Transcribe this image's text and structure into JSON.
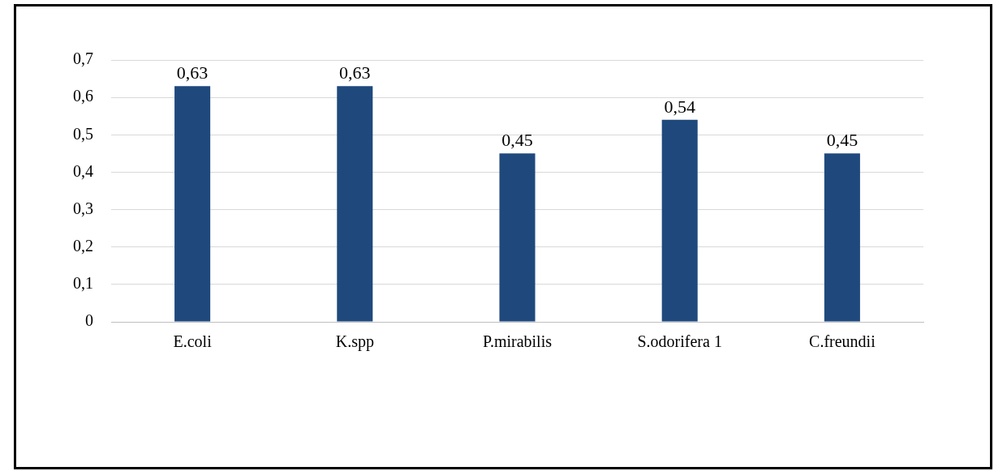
{
  "chart_data": {
    "type": "bar",
    "categories": [
      "E.coli",
      "K.spp",
      "P.mirabilis",
      "S.odorifera 1",
      "C.freundii"
    ],
    "values": [
      0.63,
      0.63,
      0.45,
      0.54,
      0.45
    ],
    "value_labels": [
      "0,63",
      "0,63",
      "0,45",
      "0,54",
      "0,45"
    ],
    "color": "#1f497d",
    "ylim": [
      0,
      0.7
    ],
    "yticks": [
      0,
      {
        "value": 0.1,
        "label": "0,1"
      },
      {
        "value": 0.2,
        "label": "0,2"
      },
      {
        "value": 0.3,
        "label": "0,3"
      },
      {
        "value": 0.4,
        "label": "0,4"
      },
      {
        "value": 0.5,
        "label": "0,5"
      },
      {
        "value": 0.6,
        "label": "0,6"
      },
      {
        "value": 0.7,
        "label": "0,7"
      }
    ],
    "grid": "y",
    "legend": false
  }
}
